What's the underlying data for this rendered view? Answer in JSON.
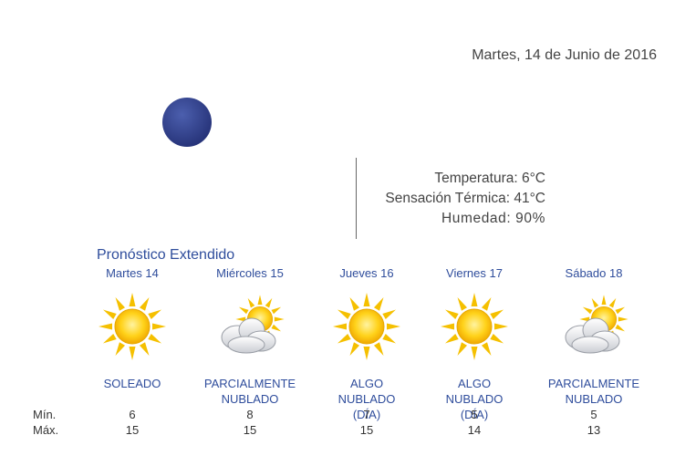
{
  "header": {
    "date": "Martes, 14 de Junio de 2016"
  },
  "current": {
    "temperature": "Temperatura: 6°C",
    "feels_like": "Sensación Térmica: 41°C",
    "humidity": "Humedad: 90%"
  },
  "forecast": {
    "title": "Pronóstico Extendido",
    "min_label": "Mín.",
    "max_label": "Máx.",
    "days": [
      {
        "day": "Martes 14",
        "condition": [
          "SOLEADO"
        ],
        "min": 6,
        "max": 15
      },
      {
        "day": "Miércoles 15",
        "condition": [
          "PARCIALMENTE",
          "NUBLADO"
        ],
        "min": 8,
        "max": 15
      },
      {
        "day": "Jueves 16",
        "condition": [
          "ALGO",
          "NUBLADO",
          "(DÍA)"
        ],
        "min": 7,
        "max": 15
      },
      {
        "day": "Viernes 17",
        "condition": [
          "ALGO",
          "NUBLADO",
          "(DÍA)"
        ],
        "min": 5,
        "max": 14
      },
      {
        "day": "Sábado 18",
        "condition": [
          "PARCIALMENTE",
          "NUBLADO"
        ],
        "min": 5,
        "max": 13
      }
    ]
  }
}
